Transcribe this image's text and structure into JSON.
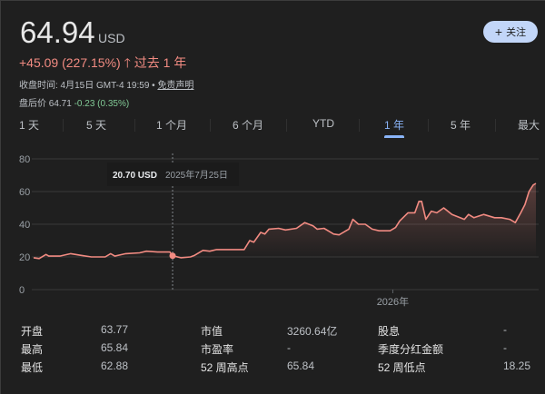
{
  "quote": {
    "price": "64.94",
    "currency": "USD",
    "change": "+45.09 (227.15%)",
    "change_arrow": "arrow-up-icon",
    "period": "过去 1 年",
    "close_time": "收盘时间: 4月15日 GMT-4 19:59 • ",
    "disclaimer": "免责声明",
    "after_label": "盘后价 64.71",
    "after_change": "-0.23 (0.35%)"
  },
  "follow_button": {
    "icon": "plus-icon",
    "label": "关注"
  },
  "tabs": [
    {
      "label": "1 天"
    },
    {
      "label": "5 天"
    },
    {
      "label": "1 个月"
    },
    {
      "label": "6 个月"
    },
    {
      "label": "YTD"
    },
    {
      "label": "1 年",
      "active": true
    },
    {
      "label": "5 年"
    },
    {
      "label": "最大"
    }
  ],
  "colors": {
    "line": "#f28b82",
    "positive": "#f28b82",
    "negative": "#81c995",
    "accent": "#8ab4f8"
  },
  "chart_data": {
    "type": "area",
    "ylim": [
      0,
      80
    ],
    "yticks": [
      "0",
      "20",
      "40",
      "60",
      "80"
    ],
    "xtick_labels": [
      {
        "date": "2026-01-01",
        "label": "2026年"
      }
    ],
    "grid": true,
    "tooltip": {
      "value": "20.70 USD",
      "date": "2025年7月25日",
      "x": "2025-07-25",
      "y": 20.7
    },
    "points": [
      [
        "2025-04-15",
        19.5
      ],
      [
        "2025-04-19",
        19
      ],
      [
        "2025-04-24",
        21.5
      ],
      [
        "2025-04-26",
        20.5
      ],
      [
        "2025-05-04",
        20.5
      ],
      [
        "2025-05-12",
        22
      ],
      [
        "2025-05-19",
        21
      ],
      [
        "2025-05-27",
        20
      ],
      [
        "2025-06-06",
        20
      ],
      [
        "2025-06-10",
        22
      ],
      [
        "2025-06-13",
        20.5
      ],
      [
        "2025-06-21",
        22
      ],
      [
        "2025-07-01",
        22.5
      ],
      [
        "2025-07-06",
        23.5
      ],
      [
        "2025-07-14",
        23
      ],
      [
        "2025-07-23",
        23
      ],
      [
        "2025-07-25",
        20.7
      ],
      [
        "2025-07-31",
        19.5
      ],
      [
        "2025-08-07",
        20
      ],
      [
        "2025-08-10",
        21
      ],
      [
        "2025-08-16",
        24
      ],
      [
        "2025-08-21",
        23.5
      ],
      [
        "2025-08-26",
        24.5
      ],
      [
        "2025-09-02",
        24.5
      ],
      [
        "2025-09-15",
        24.5
      ],
      [
        "2025-09-19",
        30
      ],
      [
        "2025-09-22",
        29
      ],
      [
        "2025-09-27",
        35
      ],
      [
        "2025-09-30",
        34
      ],
      [
        "2025-10-03",
        37
      ],
      [
        "2025-10-10",
        37.5
      ],
      [
        "2025-10-15",
        36.5
      ],
      [
        "2025-10-23",
        37.5
      ],
      [
        "2025-10-29",
        41
      ],
      [
        "2025-11-04",
        39
      ],
      [
        "2025-11-07",
        37
      ],
      [
        "2025-11-12",
        37.5
      ],
      [
        "2025-11-19",
        34
      ],
      [
        "2025-11-23",
        33.5
      ],
      [
        "2025-11-30",
        37
      ],
      [
        "2025-12-03",
        43
      ],
      [
        "2025-12-07",
        40
      ],
      [
        "2025-12-12",
        40
      ],
      [
        "2025-12-17",
        37
      ],
      [
        "2025-12-22",
        36
      ],
      [
        "2025-12-30",
        36
      ],
      [
        "2026-01-03",
        38
      ],
      [
        "2026-01-06",
        42
      ],
      [
        "2026-01-12",
        47
      ],
      [
        "2026-01-17",
        47
      ],
      [
        "2026-01-20",
        54
      ],
      [
        "2026-01-22",
        54
      ],
      [
        "2026-01-25",
        43
      ],
      [
        "2026-01-29",
        48
      ],
      [
        "2026-02-02",
        47
      ],
      [
        "2026-02-07",
        50
      ],
      [
        "2026-02-13",
        46
      ],
      [
        "2026-02-22",
        43
      ],
      [
        "2026-02-25",
        46
      ],
      [
        "2026-03-01",
        44
      ],
      [
        "2026-03-08",
        46
      ],
      [
        "2026-03-16",
        44
      ],
      [
        "2026-03-21",
        44
      ],
      [
        "2026-03-27",
        43
      ],
      [
        "2026-03-31",
        41
      ],
      [
        "2026-04-04",
        47
      ],
      [
        "2026-04-07",
        52
      ],
      [
        "2026-04-10",
        60
      ],
      [
        "2026-04-13",
        64
      ],
      [
        "2026-04-15",
        65
      ]
    ]
  },
  "stats": [
    [
      {
        "label": "开盘",
        "value": "63.77"
      },
      {
        "label": "市值",
        "value": "3260.64亿"
      },
      {
        "label": "股息",
        "value": "-"
      }
    ],
    [
      {
        "label": "最高",
        "value": "65.84"
      },
      {
        "label": "市盈率",
        "value": "-"
      },
      {
        "label": "季度分红金额",
        "value": "-"
      }
    ],
    [
      {
        "label": "最低",
        "value": "62.88"
      },
      {
        "label": "52 周高点",
        "value": "65.84"
      },
      {
        "label": "52 周低点",
        "value": "18.25"
      }
    ]
  ]
}
